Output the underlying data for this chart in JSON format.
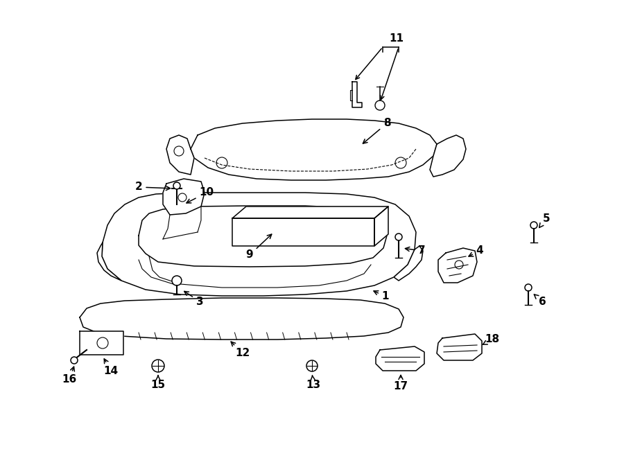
{
  "bg_color": "#ffffff",
  "line_color": "#000000",
  "fig_width": 9.0,
  "fig_height": 6.61,
  "dpi": 100,
  "lw": 1.1
}
